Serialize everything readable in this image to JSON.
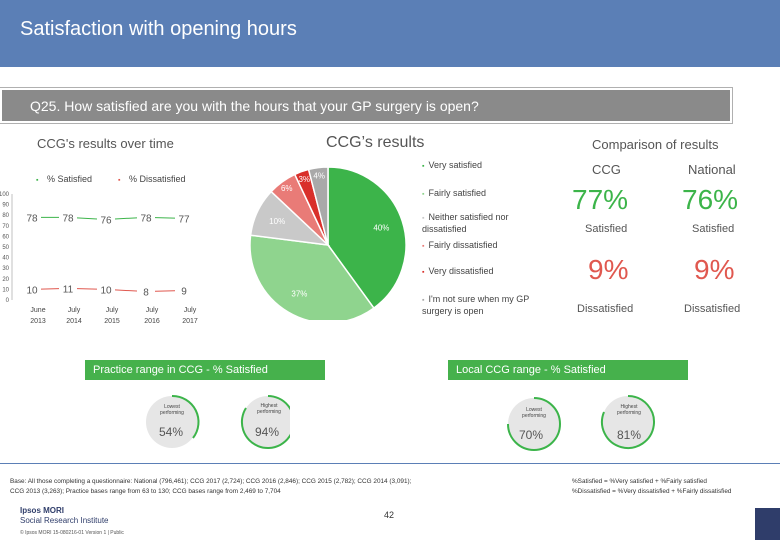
{
  "header": {
    "title": "Satisfaction with opening hours"
  },
  "question": {
    "text": "Q25. How satisfied are you with the hours that your GP surgery is open?"
  },
  "over_time": {
    "title": "CCG's results over time",
    "legend_satisfied": "% Satisfied",
    "legend_dissatisfied": "% Dissatisfied",
    "y_ticks": [
      "100",
      "90",
      "80",
      "70",
      "60",
      "50",
      "40",
      "30",
      "20",
      "10",
      "0"
    ],
    "x_labels": [
      [
        "June",
        "2013"
      ],
      [
        "July",
        "2014"
      ],
      [
        "July",
        "2015"
      ],
      [
        "July",
        "2016"
      ],
      [
        "July",
        "2017"
      ]
    ],
    "satisfied_labels": [
      "78",
      "78",
      "76",
      "78",
      "77"
    ],
    "dissatisfied_labels": [
      "10",
      "11",
      "10",
      "8",
      "9"
    ]
  },
  "chart_data": [
    {
      "type": "line",
      "title": "CCG's results over time",
      "categories": [
        "June 2013",
        "July 2014",
        "July 2015",
        "July 2016",
        "July 2017"
      ],
      "series": [
        {
          "name": "% Satisfied",
          "values": [
            78,
            78,
            76,
            78,
            77
          ],
          "color": "#3cb44a"
        },
        {
          "name": "% Dissatisfied",
          "values": [
            10,
            11,
            10,
            8,
            9
          ],
          "color": "#e0584f"
        }
      ],
      "ylim": [
        0,
        100
      ]
    },
    {
      "type": "pie",
      "title": "CCG’s results",
      "slices": [
        {
          "name": "Very satisfied",
          "value": 40,
          "label": "40%",
          "color": "#3cb44a"
        },
        {
          "name": "Fairly satisfied",
          "value": 37,
          "label": "37%",
          "color": "#8fd48e"
        },
        {
          "name": "Neither satisfied nor dissatisfied",
          "value": 10,
          "label": "10%",
          "color": "#c9c9c9"
        },
        {
          "name": "Fairly dissatisfied",
          "value": 6,
          "label": "6%",
          "color": "#e97b77"
        },
        {
          "name": "Very dissatisfied",
          "value": 3,
          "label": "3%",
          "color": "#d9302b"
        },
        {
          "name": "I'm not sure when my GP surgery is open",
          "value": 4,
          "label": "4%",
          "color": "#a9a9a9"
        }
      ]
    }
  ],
  "pie_section": {
    "title": "CCG’s results",
    "legend": [
      "Very satisfied",
      "Fairly satisfied",
      "Neither satisfied nor dissatisfied",
      "Fairly dissatisfied",
      "Very dissatisfied",
      "I'm not sure when my GP surgery is open"
    ],
    "labels": [
      "40%",
      "37%",
      "10%",
      "6%",
      "3%",
      "4%"
    ]
  },
  "comparison": {
    "title": "Comparison of results",
    "ccg_header": "CCG",
    "national_header": "National",
    "ccg_satisfied": "77%",
    "national_satisfied": "76%",
    "satisfied_label": "Satisfied",
    "ccg_dissatisfied": "9%",
    "national_dissatisfied": "9%",
    "dissatisfied_label": "Dissatisfied"
  },
  "practice_range": {
    "title": "Practice range in CCG - % Satisfied",
    "lowest_label": "Lowest performing",
    "highest_label": "Highest performing",
    "lowest_value": "54%",
    "highest_value": "94%"
  },
  "local_range": {
    "title": "Local CCG range - % Satisfied",
    "lowest_label": "Lowest performing",
    "highest_label": "Highest performing",
    "lowest_value": "70%",
    "highest_value": "81%"
  },
  "footer": {
    "base_line1": "Base: All those completing a questionnaire: National (796,461); CCG 2017 (2,724); CCG 2016 (2,846); CCG 2015 (2,782); CCG 2014 (3,091);",
    "base_line2": "CCG 2013 (3,263); Practice bases range from 63 to 130; CCG bases range from 2,469 to 7,704",
    "note_line1": "%Satisfied = %Very satisfied + %Fairly satisfied",
    "note_line2": "%Dissatisfied = %Very dissatisfied + %Fairly dissatisfied",
    "page_number": "42",
    "logo_line1": "Ipsos MORI",
    "logo_line2": "Social Research Institute",
    "copyright": "© Ipsos MORI   15-080216-01 Version 1 | Public"
  }
}
